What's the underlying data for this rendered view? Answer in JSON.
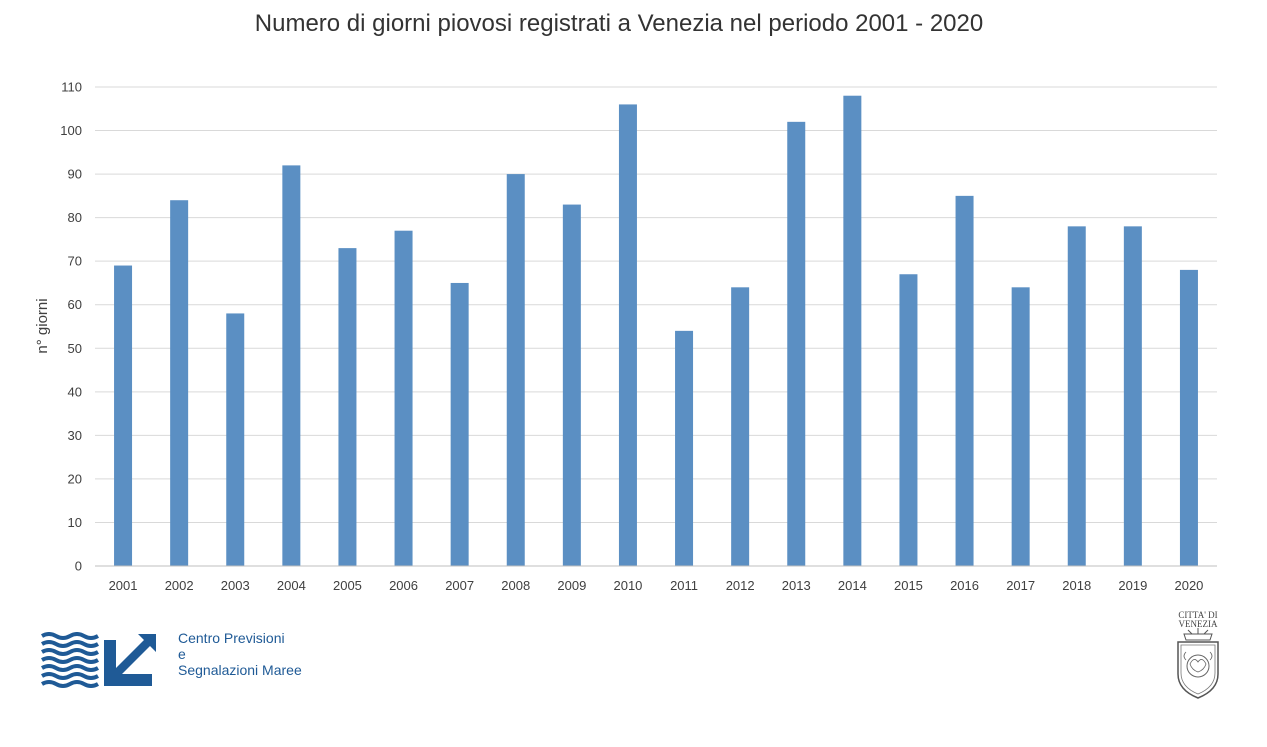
{
  "chart_data": {
    "type": "bar",
    "title": "Numero di giorni piovosi registrati a Venezia nel periodo 2001 - 2020",
    "xlabel": "",
    "ylabel": "n° giorni",
    "categories": [
      "2001",
      "2002",
      "2003",
      "2004",
      "2005",
      "2006",
      "2007",
      "2008",
      "2009",
      "2010",
      "2011",
      "2012",
      "2013",
      "2014",
      "2015",
      "2016",
      "2017",
      "2018",
      "2019",
      "2020"
    ],
    "values": [
      69,
      84,
      58,
      92,
      73,
      77,
      65,
      90,
      83,
      106,
      54,
      64,
      102,
      108,
      67,
      85,
      64,
      78,
      78,
      68
    ],
    "ylim": [
      0,
      110
    ],
    "yticks": [
      0,
      10,
      20,
      30,
      40,
      50,
      60,
      70,
      80,
      90,
      100,
      110
    ],
    "grid": true,
    "bar_color": "#5b8fc3",
    "grid_color": "#d9d9d9"
  },
  "logo": {
    "line1": "Centro Previsioni",
    "line2": "e",
    "line3": "Segnalazioni Maree",
    "color": "#1f5a96"
  },
  "seal": {
    "line1": "CITTA' DI",
    "line2": "VENEZIA"
  }
}
